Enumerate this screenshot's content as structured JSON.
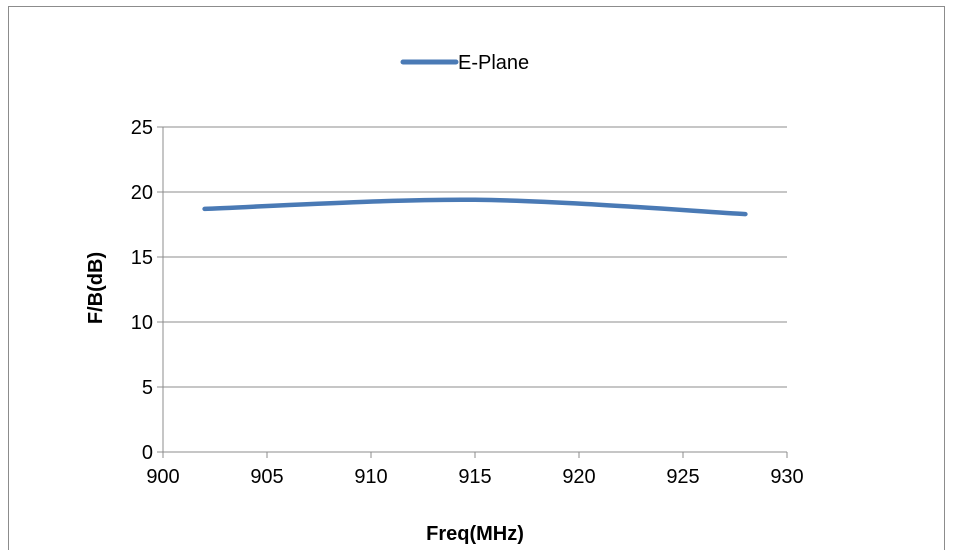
{
  "chart_data": {
    "type": "line",
    "title": "",
    "xlabel": "Freq(MHz)",
    "ylabel": "F/B(dB)",
    "xlim": [
      900,
      930
    ],
    "ylim": [
      0,
      25
    ],
    "xticks": [
      900,
      905,
      910,
      915,
      920,
      925,
      930
    ],
    "yticks": [
      0,
      5,
      10,
      15,
      20,
      25
    ],
    "grid": "horizontal",
    "legend_position": "top-center",
    "series": [
      {
        "name": "E-Plane",
        "color": "#4a7ab5",
        "x": [
          902,
          915,
          928
        ],
        "y": [
          18.7,
          19.4,
          18.3
        ]
      }
    ]
  }
}
